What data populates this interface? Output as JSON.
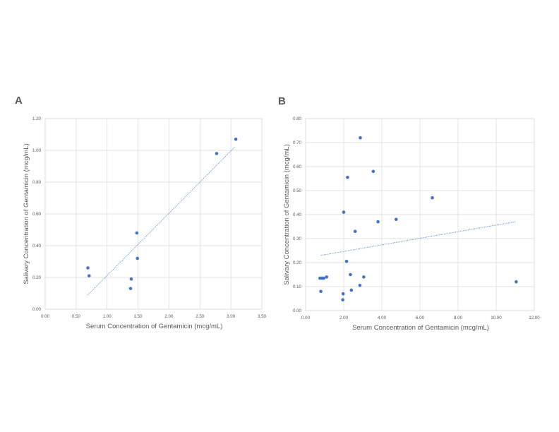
{
  "panels": {
    "a_label": "A",
    "b_label": "B"
  },
  "colors": {
    "marker": "#4472c4",
    "gridline": "#d9d9d9",
    "text": "#595959"
  },
  "chart_data": [
    {
      "type": "scatter",
      "panel": "A",
      "xlabel": "Serum Concentration of Gentamicin (mcg/mL)",
      "ylabel": "Salivary Concentration of Gentamicin (mcg/mL)",
      "xlim": [
        0,
        3.5
      ],
      "ylim": [
        0,
        1.2
      ],
      "xticks": [
        "0.00",
        "0.50",
        "1.00",
        "1.50",
        "2.00",
        "2.50",
        "3.00",
        "3.50"
      ],
      "yticks": [
        "0.00",
        "0.20",
        "0.40",
        "0.60",
        "0.80",
        "1.00",
        "1.20"
      ],
      "grid": true,
      "trendline": {
        "x": [
          0.69,
          3.06
        ],
        "y": [
          0.09,
          1.02
        ],
        "style": "dotted"
      },
      "x": [
        0.69,
        0.71,
        1.38,
        1.39,
        1.48,
        1.49,
        2.77,
        3.08
      ],
      "y": [
        0.26,
        0.21,
        0.13,
        0.19,
        0.48,
        0.32,
        0.98,
        1.07
      ]
    },
    {
      "type": "scatter",
      "panel": "B",
      "xlabel": "Serum Concentration of Gentamicin (mcg/mL)",
      "ylabel": "Salivary Concentration of Gentamicin (mcg/mL)",
      "xlim": [
        0,
        12
      ],
      "ylim": [
        0,
        0.8
      ],
      "xticks": [
        "0.00",
        "2.00",
        "4.00",
        "6.00",
        "8.00",
        "10.00",
        "12.00"
      ],
      "yticks": [
        "0.00",
        "0.10",
        "0.20",
        "0.30",
        "0.40",
        "0.50",
        "0.60",
        "0.70",
        "0.80"
      ],
      "grid": true,
      "trendline": {
        "x": [
          0.8,
          11.0
        ],
        "y": [
          0.23,
          0.37
        ],
        "style": "dotted"
      },
      "x": [
        0.75,
        0.8,
        0.85,
        0.95,
        1.1,
        1.95,
        1.97,
        2.0,
        2.15,
        2.2,
        2.35,
        2.4,
        2.6,
        2.85,
        2.87,
        3.05,
        3.55,
        3.8,
        4.75,
        6.65,
        11.05
      ],
      "y": [
        0.135,
        0.08,
        0.135,
        0.135,
        0.14,
        0.045,
        0.07,
        0.41,
        0.205,
        0.555,
        0.15,
        0.085,
        0.33,
        0.105,
        0.72,
        0.14,
        0.58,
        0.37,
        0.38,
        0.47,
        0.12
      ]
    }
  ]
}
